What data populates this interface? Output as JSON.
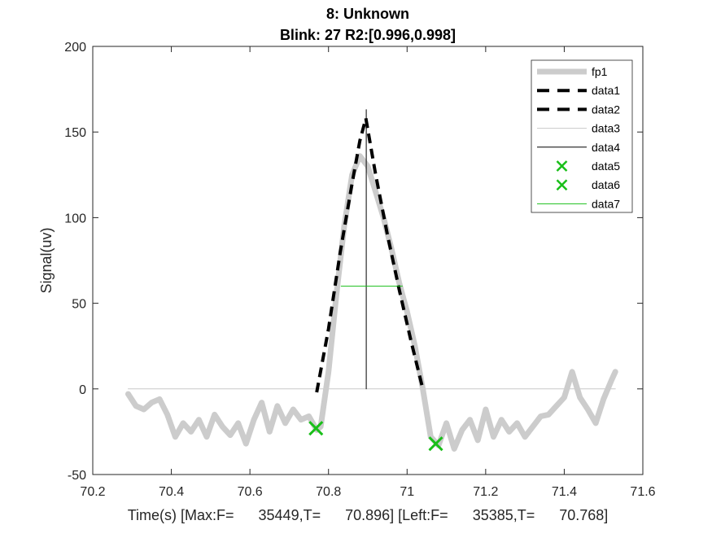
{
  "chart_data": {
    "type": "line",
    "title_line1": "8: Unknown",
    "title_line2": "Blink: 27 R2:[0.996,0.998]",
    "xlabel": "Time(s) [Max:F=      35449,T=      70.896] [Left:F=      35385,T=      70.768]",
    "ylabel": "Signal(uv)",
    "xlim": [
      70.2,
      71.6
    ],
    "ylim": [
      -50,
      200
    ],
    "xticks": [
      70.2,
      70.4,
      70.6,
      70.8,
      71.0,
      71.2,
      71.4,
      71.6
    ],
    "xtick_labels": [
      "70.2",
      "70.4",
      "70.6",
      "70.8",
      "71",
      "71.2",
      "71.4",
      "71.6"
    ],
    "yticks": [
      -50,
      0,
      50,
      100,
      150,
      200
    ],
    "ytick_labels": [
      "-50",
      "0",
      "50",
      "100",
      "150",
      "200"
    ],
    "legend_position": "top-right",
    "series": [
      {
        "name": "fp1",
        "style": "solid-thick",
        "color": "#cccccc",
        "x": [
          70.29,
          70.31,
          70.33,
          70.35,
          70.37,
          70.39,
          70.41,
          70.43,
          70.45,
          70.47,
          70.49,
          70.51,
          70.53,
          70.55,
          70.57,
          70.59,
          70.61,
          70.63,
          70.65,
          70.67,
          70.69,
          70.71,
          70.73,
          70.75,
          70.77,
          70.78,
          70.8,
          70.82,
          70.84,
          70.86,
          70.88,
          70.9,
          70.92,
          70.94,
          70.96,
          70.98,
          71.0,
          71.02,
          71.04,
          71.06,
          71.08,
          71.1,
          71.12,
          71.14,
          71.16,
          71.18,
          71.2,
          71.22,
          71.24,
          71.26,
          71.28,
          71.3,
          71.32,
          71.34,
          71.36,
          71.38,
          71.4,
          71.42,
          71.44,
          71.46,
          71.48,
          71.5,
          71.52,
          71.53
        ],
        "y": [
          -3,
          -10,
          -12,
          -8,
          -6,
          -15,
          -28,
          -20,
          -25,
          -18,
          -28,
          -15,
          -22,
          -27,
          -20,
          -32,
          -18,
          -8,
          -25,
          -10,
          -20,
          -12,
          -18,
          -16,
          -24,
          -22,
          10,
          55,
          95,
          125,
          136,
          130,
          115,
          100,
          82,
          62,
          45,
          25,
          0,
          -28,
          -33,
          -20,
          -35,
          -24,
          -18,
          -30,
          -12,
          -28,
          -18,
          -25,
          -20,
          -28,
          -22,
          -16,
          -15,
          -10,
          -5,
          10,
          -5,
          -12,
          -20,
          -6,
          5,
          10
        ]
      },
      {
        "name": "data1",
        "style": "dashed",
        "color": "#000000",
        "x": [
          70.77,
          70.8,
          70.83,
          70.86,
          70.88,
          70.895
        ],
        "y": [
          -2,
          35,
          80,
          120,
          145,
          158
        ]
      },
      {
        "name": "data2",
        "style": "dashed",
        "color": "#000000",
        "x": [
          70.895,
          70.92,
          70.95,
          70.98,
          71.01,
          71.04
        ],
        "y": [
          158,
          125,
          90,
          58,
          28,
          0
        ]
      },
      {
        "name": "data3",
        "style": "solid-thin",
        "color": "#c8c8c8",
        "x": [
          70.29,
          71.53
        ],
        "y": [
          0,
          0
        ]
      },
      {
        "name": "data4",
        "style": "solid-thin",
        "color": "#000000",
        "x": [
          70.896,
          70.896
        ],
        "y": [
          0,
          163
        ]
      },
      {
        "name": "data5",
        "style": "marker-x",
        "color": "#19bf19",
        "x": [
          70.768
        ],
        "y": [
          -23
        ]
      },
      {
        "name": "data6",
        "style": "marker-x",
        "color": "#19bf19",
        "x": [
          71.073
        ],
        "y": [
          -32
        ]
      },
      {
        "name": "data7",
        "style": "solid-thin",
        "color": "#19bf19",
        "x": [
          70.832,
          70.988
        ],
        "y": [
          60,
          60
        ]
      }
    ]
  }
}
